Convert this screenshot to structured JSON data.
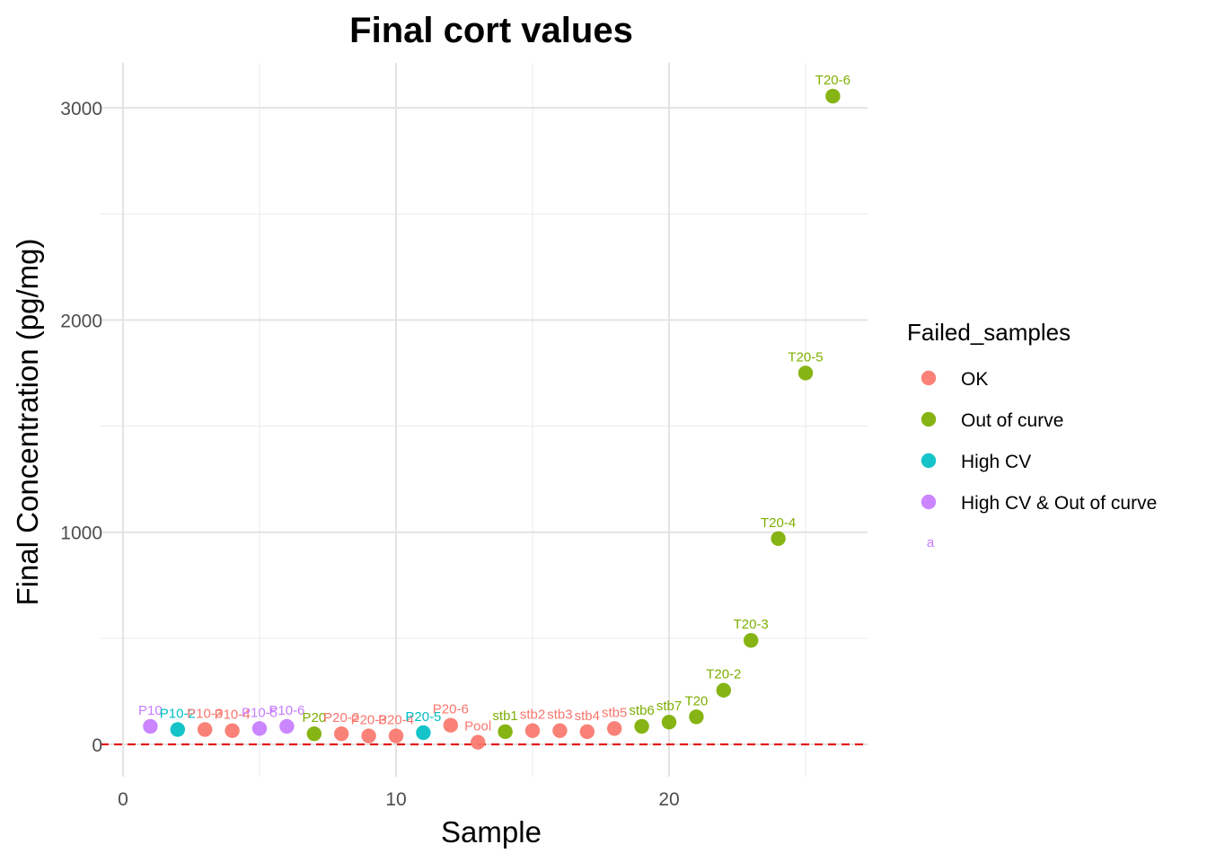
{
  "chart_data": {
    "type": "scatter",
    "title": "Final cort values",
    "xlabel": "Sample",
    "ylabel": "Final Concentration (pg/mg)",
    "xlim": [
      0,
      27
    ],
    "ylim": [
      -150,
      3200
    ],
    "x_ticks": [
      0,
      10,
      20
    ],
    "x_minor": [
      5,
      15,
      25
    ],
    "y_ticks": [
      0,
      1000,
      2000,
      3000
    ],
    "y_minor": [
      500,
      1500,
      2500
    ],
    "grid": true,
    "reference_line": {
      "y": 0,
      "color": "#E41A1C",
      "style": "dashed"
    },
    "legend": {
      "title": "Failed_samples",
      "position": "right",
      "entries": [
        {
          "name": "OK",
          "color": "#F8766D"
        },
        {
          "name": "Out of curve",
          "color": "#7CAE00"
        },
        {
          "name": "High CV",
          "color": "#00BFC4"
        },
        {
          "name": "High CV & Out of curve",
          "color": "#C77CFF"
        }
      ],
      "label_key_glyph": "a"
    },
    "points": [
      {
        "x": 1,
        "y": 85,
        "label": "P10",
        "group": "High CV & Out of curve"
      },
      {
        "x": 2,
        "y": 70,
        "label": "P10-2",
        "group": "High CV"
      },
      {
        "x": 3,
        "y": 70,
        "label": "P10-3",
        "group": "OK"
      },
      {
        "x": 4,
        "y": 65,
        "label": "P10-4",
        "group": "OK"
      },
      {
        "x": 5,
        "y": 75,
        "label": "P10-5",
        "group": "High CV & Out of curve"
      },
      {
        "x": 6,
        "y": 85,
        "label": "P10-6",
        "group": "High CV & Out of curve"
      },
      {
        "x": 7,
        "y": 50,
        "label": "P20",
        "group": "Out of curve"
      },
      {
        "x": 8,
        "y": 50,
        "label": "P20-2",
        "group": "OK"
      },
      {
        "x": 9,
        "y": 40,
        "label": "P20-3",
        "group": "OK"
      },
      {
        "x": 10,
        "y": 40,
        "label": "P20-4",
        "group": "OK"
      },
      {
        "x": 11,
        "y": 55,
        "label": "P20-5",
        "group": "High CV"
      },
      {
        "x": 12,
        "y": 90,
        "label": "P20-6",
        "group": "OK"
      },
      {
        "x": 13,
        "y": 10,
        "label": "Pool",
        "group": "OK"
      },
      {
        "x": 14,
        "y": 60,
        "label": "stb1",
        "group": "Out of curve"
      },
      {
        "x": 15,
        "y": 65,
        "label": "stb2",
        "group": "OK"
      },
      {
        "x": 16,
        "y": 65,
        "label": "stb3",
        "group": "OK"
      },
      {
        "x": 17,
        "y": 60,
        "label": "stb4",
        "group": "OK"
      },
      {
        "x": 18,
        "y": 75,
        "label": "stb5",
        "group": "OK"
      },
      {
        "x": 19,
        "y": 85,
        "label": "stb6",
        "group": "Out of curve"
      },
      {
        "x": 20,
        "y": 105,
        "label": "stb7",
        "group": "Out of curve"
      },
      {
        "x": 21,
        "y": 130,
        "label": "T20",
        "group": "Out of curve"
      },
      {
        "x": 22,
        "y": 255,
        "label": "T20-2",
        "group": "Out of curve"
      },
      {
        "x": 23,
        "y": 490,
        "label": "T20-3",
        "group": "Out of curve"
      },
      {
        "x": 24,
        "y": 970,
        "label": "T20-4",
        "group": "Out of curve"
      },
      {
        "x": 25,
        "y": 1750,
        "label": "T20-5",
        "group": "Out of curve"
      },
      {
        "x": 26,
        "y": 3055,
        "label": "T20-6",
        "group": "Out of curve"
      }
    ]
  }
}
